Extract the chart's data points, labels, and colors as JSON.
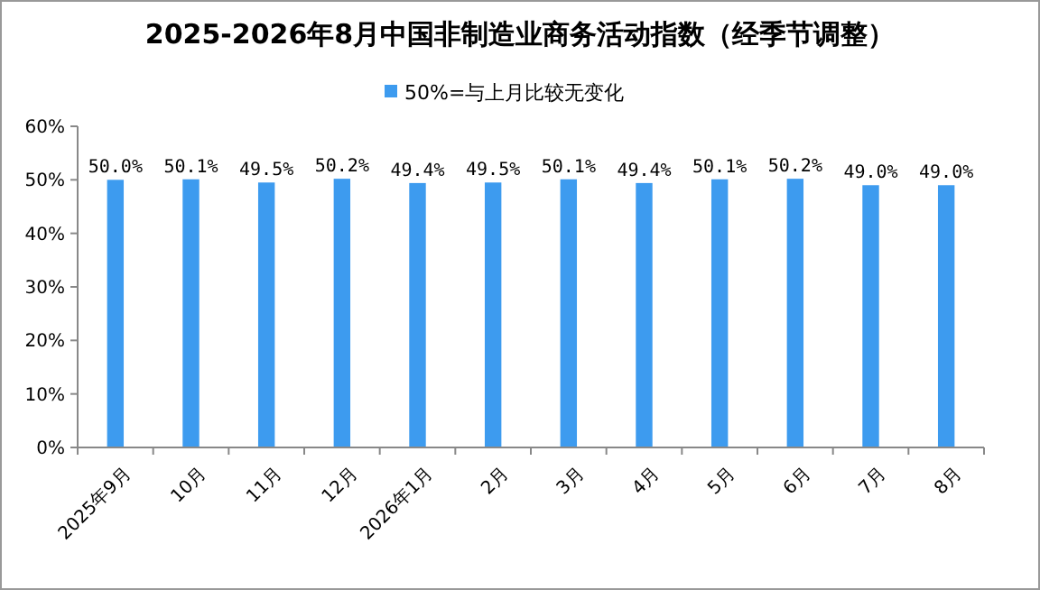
{
  "chart_data": {
    "type": "bar",
    "title": "2025-2026年8月中国非制造业商务活动指数（经季节调整）",
    "categories": [
      "2025年9月",
      "10月",
      "11月",
      "12月",
      "2026年1月",
      "2月",
      "3月",
      "4月",
      "5月",
      "6月",
      "7月",
      "8月"
    ],
    "series": [
      {
        "name": "50%=与上月比较无变化",
        "color": "#3d9bef",
        "values": [
          50.0,
          50.1,
          49.5,
          50.2,
          49.4,
          49.5,
          50.1,
          49.4,
          50.1,
          50.2,
          49.0,
          49.0
        ],
        "value_labels": [
          "50.0%",
          "50.1%",
          "49.5%",
          "50.2%",
          "49.4%",
          "49.5%",
          "50.1%",
          "49.4%",
          "50.1%",
          "50.2%",
          "49.0%",
          "49.0%"
        ]
      }
    ],
    "ylim": [
      0,
      60
    ],
    "yticks": [
      {
        "value": 0,
        "label": "0%"
      },
      {
        "value": 10,
        "label": "10%"
      },
      {
        "value": 20,
        "label": "20%"
      },
      {
        "value": 30,
        "label": "30%"
      },
      {
        "value": 40,
        "label": "40%"
      },
      {
        "value": 50,
        "label": "50%"
      },
      {
        "value": 60,
        "label": "60%"
      }
    ],
    "legend": "top",
    "grid": false
  }
}
